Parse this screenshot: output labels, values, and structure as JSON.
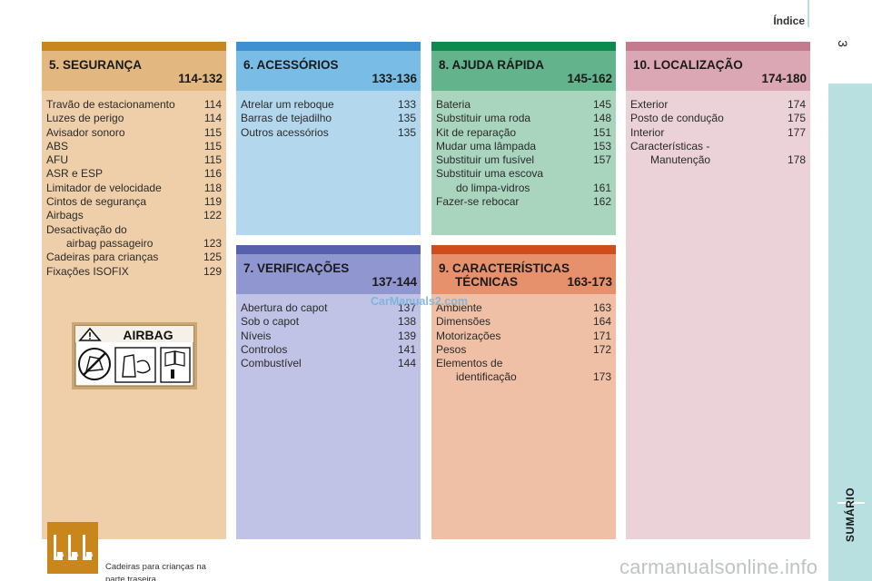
{
  "header": {
    "title": "Índice",
    "page_number": "3"
  },
  "side_tab": {
    "label": "SUMÁRIO",
    "color": "#b9e0e0"
  },
  "sections": [
    {
      "id": "seguranca",
      "title": "5. SEGURANÇA",
      "title_line2": "",
      "range": "114-132",
      "colors": {
        "bar": "#c8861c",
        "head": "#e3b880",
        "body": "#efcfa9"
      },
      "items": [
        {
          "label": "Travão de estacionamento",
          "page": "114"
        },
        {
          "label": "Luzes de perigo",
          "page": "114"
        },
        {
          "label": "Avisador sonoro",
          "page": "115"
        },
        {
          "label": "ABS",
          "page": "115"
        },
        {
          "label": "AFU",
          "page": "115"
        },
        {
          "label": "ASR e ESP",
          "page": "116"
        },
        {
          "label": "Limitador de velocidade",
          "page": "118"
        },
        {
          "label": "Cintos de segurança",
          "page": "119"
        },
        {
          "label": "Airbags",
          "page": "122"
        },
        {
          "label": "Desactivação do",
          "page": ""
        },
        {
          "label": "airbag passageiro",
          "page": "123",
          "indent": true
        },
        {
          "label": "Cadeiras para crianças",
          "page": "125"
        },
        {
          "label": "Fixações ISOFIX",
          "page": "129"
        }
      ],
      "airbag_label": {
        "text": "AIRBAG"
      },
      "note": {
        "line1": "Cadeiras para crianças na",
        "line2": "parte traseira."
      }
    },
    {
      "id": "acessorios",
      "title": "6. ACESSÓRIOS",
      "title_line2": "",
      "range": "133-136",
      "colors": {
        "bar": "#3f90d0",
        "head": "#79bde6",
        "body": "#b3d8ee"
      },
      "items": [
        {
          "label": "Atrelar um reboque",
          "page": "133"
        },
        {
          "label": "Barras de tejadilho",
          "page": "135"
        },
        {
          "label": "Outros acessórios",
          "page": "135"
        }
      ]
    },
    {
      "id": "ajuda-rapida",
      "title": "8. AJUDA RÁPIDA",
      "title_line2": "",
      "range": "145-162",
      "colors": {
        "bar": "#0d8a4e",
        "head": "#63b48d",
        "body": "#a9d4be"
      },
      "items": [
        {
          "label": "Bateria",
          "page": "145"
        },
        {
          "label": "Substituir uma roda",
          "page": "148"
        },
        {
          "label": "Kit de reparação",
          "page": "151"
        },
        {
          "label": "Mudar uma lâmpada",
          "page": "153"
        },
        {
          "label": "Substituir um fusível",
          "page": "157"
        },
        {
          "label": "Substituir uma escova",
          "page": ""
        },
        {
          "label": "do limpa-vidros",
          "page": "161",
          "indent": true
        },
        {
          "label": "Fazer-se rebocar",
          "page": "162"
        }
      ]
    },
    {
      "id": "localizacao",
      "title": "10. LOCALIZAÇÃO",
      "title_line2": "",
      "range": "174-180",
      "colors": {
        "bar": "#c57b8e",
        "head": "#dca7b4",
        "body": "#ebd1d8"
      },
      "items": [
        {
          "label": "Exterior",
          "page": "174"
        },
        {
          "label": "Posto de condução",
          "page": "175"
        },
        {
          "label": "Interior",
          "page": "177"
        },
        {
          "label": "Características -",
          "page": ""
        },
        {
          "label": "Manutenção",
          "page": "178",
          "indent": true
        }
      ]
    },
    {
      "id": "verificacoes",
      "title": "7. VERIFICAÇÕES",
      "title_line2": "",
      "range": "137-144",
      "colors": {
        "bar": "#5660ad",
        "head": "#9096cf",
        "body": "#c0c3e5"
      },
      "items": [
        {
          "label": "Abertura do capot",
          "page": "137"
        },
        {
          "label": "Sob o capot",
          "page": "138"
        },
        {
          "label": "Níveis",
          "page": "139"
        },
        {
          "label": "Controlos",
          "page": "141"
        },
        {
          "label": "Combustível",
          "page": "144"
        }
      ]
    },
    {
      "id": "caracteristicas",
      "title": "9. CARACTERÍSTICAS",
      "title_line2": "TÉCNICAS",
      "range": "163-173",
      "colors": {
        "bar": "#d04c1d",
        "head": "#e7916c",
        "body": "#f0c0a6"
      },
      "items": [
        {
          "label": "Ambiente",
          "page": "163"
        },
        {
          "label": "Dimensões",
          "page": "164"
        },
        {
          "label": "Motorizações",
          "page": "171"
        },
        {
          "label": "Pesos",
          "page": "172"
        },
        {
          "label": "Elementos de",
          "page": ""
        },
        {
          "label": "identificação",
          "page": "173",
          "indent": true
        }
      ]
    }
  ],
  "watermarks": {
    "mid": "CarManuals2.com",
    "bottom": "carmanualsonline.info"
  }
}
